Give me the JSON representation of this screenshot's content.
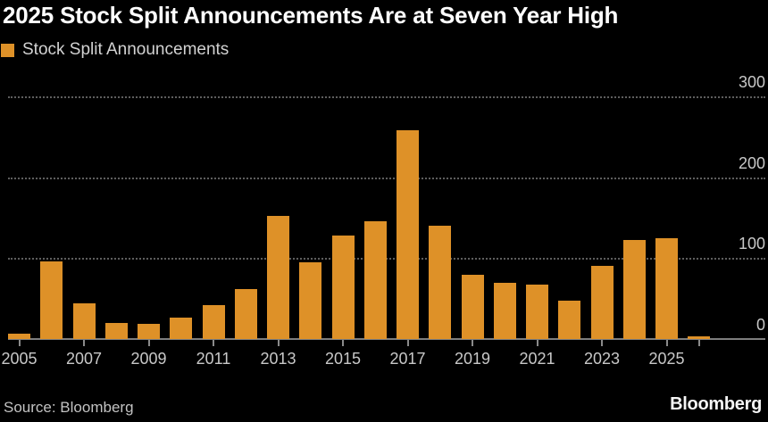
{
  "header": {
    "title": "2025 Stock Split Announcements Are at Seven Year High"
  },
  "legend": {
    "label": "Stock Split Announcements",
    "swatch_color": "#DE9128"
  },
  "footer": {
    "source": "Source: Bloomberg",
    "logo": "Bloomberg"
  },
  "colors": {
    "background": "#000000",
    "bar": "#DE9128",
    "title_text": "#FFFFFF",
    "axis_text": "#C8C8C8",
    "gridline": "#5E5E5E",
    "axis_line": "#7E7E7E"
  },
  "chart_data": {
    "type": "bar",
    "title": "2025 Stock Split Announcements Are at Seven Year High",
    "series_name": "Stock Split Announcements",
    "x": [
      2005,
      2006,
      2007,
      2008,
      2009,
      2010,
      2011,
      2012,
      2013,
      2014,
      2015,
      2016,
      2017,
      2018,
      2019,
      2020,
      2021,
      2022,
      2023,
      2024,
      2025,
      2026
    ],
    "values": [
      7,
      96,
      44,
      20,
      19,
      26,
      42,
      62,
      152,
      95,
      128,
      146,
      258,
      140,
      79,
      70,
      67,
      47,
      90,
      122,
      125,
      3
    ],
    "xlabel": "",
    "ylabel": "",
    "ylim": [
      0,
      300
    ],
    "yticks": [
      0,
      100,
      200,
      300
    ],
    "ytick_side": "right",
    "xticks": [
      {
        "x": 2005,
        "label": "2005"
      },
      {
        "x": 2007,
        "label": "2007"
      },
      {
        "x": 2009,
        "label": "2009"
      },
      {
        "x": 2011,
        "label": "2011"
      },
      {
        "x": 2013,
        "label": "2013"
      },
      {
        "x": 2015,
        "label": "2015"
      },
      {
        "x": 2017,
        "label": "2017"
      },
      {
        "x": 2019,
        "label": "2019"
      },
      {
        "x": 2021,
        "label": "2021"
      },
      {
        "x": 2023,
        "label": "2023"
      },
      {
        "x": 2025,
        "label": "2025"
      },
      {
        "x": 2026,
        "label": ""
      }
    ],
    "grid": "horizontal-dotted",
    "legend_position": "top-left",
    "bar_color": "#DE9128",
    "background": "#000000"
  }
}
